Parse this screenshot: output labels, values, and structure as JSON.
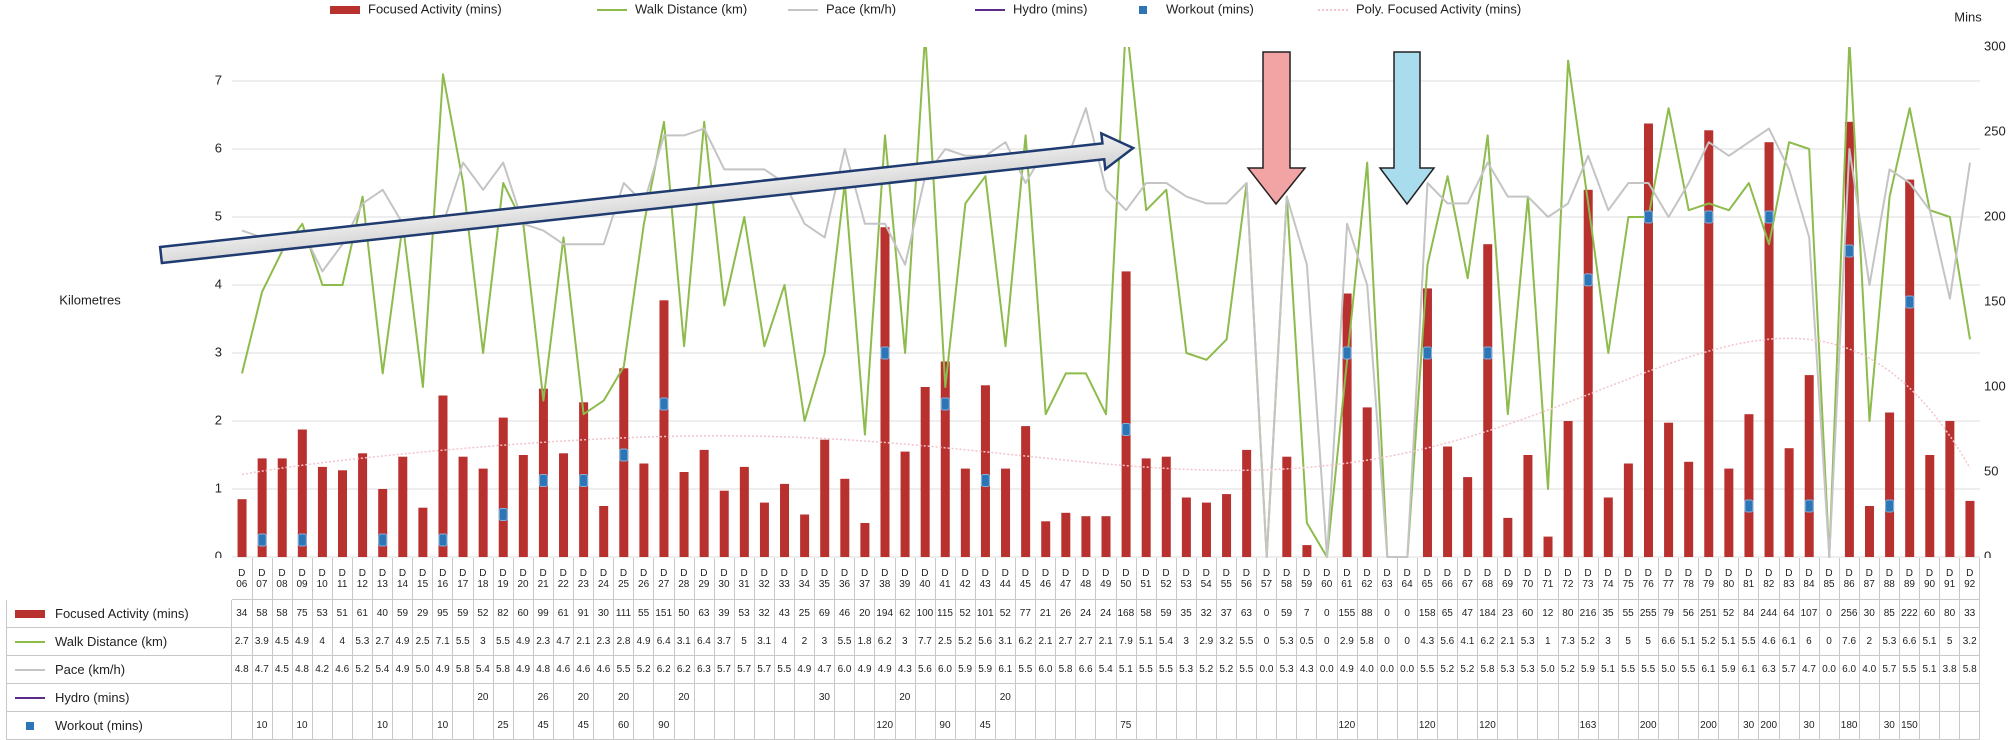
{
  "chart_data": {
    "type": "combo",
    "ylabel": "Kilometres",
    "y2label": "Mins",
    "ylim": [
      0,
      7.5
    ],
    "yticks": [
      0,
      1,
      2,
      3,
      4,
      5,
      6,
      7
    ],
    "y2lim": [
      0,
      300
    ],
    "y2ticks": [
      0,
      50,
      100,
      150,
      200,
      250,
      300
    ],
    "grid": true,
    "categories": [
      "D 06",
      "D 07",
      "D 08",
      "D 09",
      "D 10",
      "D 11",
      "D 12",
      "D 13",
      "D 14",
      "D 15",
      "D 16",
      "D 17",
      "D 18",
      "D 19",
      "D 20",
      "D 21",
      "D 22",
      "D 23",
      "D 24",
      "D 25",
      "D 26",
      "D 27",
      "D 28",
      "D 29",
      "D 30",
      "D 31",
      "D 32",
      "D 33",
      "D 34",
      "D 35",
      "D 36",
      "D 37",
      "D 38",
      "D 39",
      "D 40",
      "D 41",
      "D 42",
      "D 43",
      "D 44",
      "D 45",
      "D 46",
      "D 47",
      "D 48",
      "D 49",
      "D 50",
      "D 51",
      "D 52",
      "D 53",
      "D 54",
      "D 55",
      "D 56",
      "D 57",
      "D 58",
      "D 59",
      "D 60",
      "D 61",
      "D 62",
      "D 63",
      "D 64",
      "D 65",
      "D 66",
      "D 67",
      "D 68",
      "D 69",
      "D 70",
      "D 71",
      "D 72",
      "D 73",
      "D 74",
      "D 75",
      "D 76",
      "D 77",
      "D 78",
      "D 79",
      "D 80",
      "D 81",
      "D 82",
      "D 83",
      "D 84",
      "D 85",
      "D 86",
      "D 87",
      "D 88",
      "D 89",
      "D 90",
      "D 91",
      "D 92"
    ],
    "series": [
      {
        "name": "Focused Activity (mins)",
        "type": "bar",
        "axis": "y2",
        "color": "#b8312f",
        "values": [
          34,
          58,
          58,
          75,
          53,
          51,
          61,
          40,
          59,
          29,
          95,
          59,
          52,
          82,
          60,
          99,
          61,
          91,
          30,
          111,
          55,
          151,
          50,
          63,
          39,
          53,
          32,
          43,
          25,
          69,
          46,
          20,
          194,
          62,
          100,
          115,
          52,
          101,
          52,
          77,
          21,
          26,
          24,
          24,
          168,
          58,
          59,
          35,
          32,
          37,
          63,
          0,
          59,
          7,
          0,
          155,
          88,
          0,
          0,
          158,
          65,
          47,
          184,
          23,
          60,
          12,
          80,
          216,
          35,
          55,
          255,
          79,
          56,
          251,
          52,
          84,
          244,
          64,
          107,
          0,
          256,
          30,
          85,
          222,
          60,
          80,
          33
        ]
      },
      {
        "name": "Walk Distance (km)",
        "type": "line",
        "axis": "y",
        "color": "#8dbb4c",
        "values": [
          2.7,
          3.9,
          4.5,
          4.9,
          4,
          4,
          5.3,
          2.7,
          4.9,
          2.5,
          7.1,
          5.5,
          3,
          5.5,
          4.9,
          2.3,
          4.7,
          2.1,
          2.3,
          2.8,
          4.9,
          6.4,
          3.1,
          6.4,
          3.7,
          5,
          3.1,
          4,
          2,
          3,
          5.5,
          1.8,
          6.2,
          3,
          7.7,
          2.5,
          5.2,
          5.6,
          3.1,
          6.2,
          2.1,
          2.7,
          2.7,
          2.1,
          7.9,
          5.1,
          5.4,
          3,
          2.9,
          3.2,
          5.5,
          0,
          5.3,
          0.5,
          0,
          2.9,
          5.8,
          0,
          0,
          4.3,
          5.6,
          4.1,
          6.2,
          2.1,
          5.3,
          1,
          7.3,
          5.2,
          3,
          5,
          5,
          6.6,
          5.1,
          5.2,
          5.1,
          5.5,
          4.6,
          6.1,
          6,
          0,
          7.6,
          2,
          5.3,
          6.6,
          5.1,
          5,
          3.2
        ]
      },
      {
        "name": "Pace (km/h)",
        "type": "line",
        "axis": "y",
        "color": "#c4c4c4",
        "values": [
          4.8,
          4.7,
          4.5,
          4.8,
          4.2,
          4.6,
          5.2,
          5.4,
          4.9,
          5,
          4.9,
          5.8,
          5.4,
          5.8,
          4.9,
          4.8,
          4.6,
          4.6,
          4.6,
          5.5,
          5.2,
          6.2,
          6.2,
          6.3,
          5.7,
          5.7,
          5.7,
          5.5,
          4.9,
          4.7,
          6,
          4.9,
          4.9,
          4.3,
          5.6,
          6,
          5.9,
          5.9,
          6.1,
          5.5,
          6,
          5.8,
          6.6,
          5.4,
          5.1,
          5.5,
          5.5,
          5.3,
          5.2,
          5.2,
          5.5,
          0,
          5.3,
          4.3,
          0,
          4.9,
          4,
          0,
          0,
          5.5,
          5.2,
          5.2,
          5.8,
          5.3,
          5.3,
          5,
          5.2,
          5.9,
          5.1,
          5.5,
          5.5,
          5,
          5.5,
          6.1,
          5.9,
          6.1,
          6.3,
          5.7,
          4.7,
          0,
          6,
          4,
          5.7,
          5.5,
          5.1,
          3.8,
          5.8
        ],
        "value_labels": [
          "4.8",
          "4.7",
          "4.5",
          "4.8",
          "4.2",
          "4.6",
          "5.2",
          "5.4",
          "4.9",
          "5.0",
          "4.9",
          "5.8",
          "5.4",
          "5.8",
          "4.9",
          "4.8",
          "4.6",
          "4.6",
          "4.6",
          "5.5",
          "5.2",
          "6.2",
          "6.2",
          "6.3",
          "5.7",
          "5.7",
          "5.7",
          "5.5",
          "4.9",
          "4.7",
          "6.0",
          "4.9",
          "4.9",
          "4.3",
          "5.6",
          "6.0",
          "5.9",
          "5.9",
          "6.1",
          "5.5",
          "6.0",
          "5.8",
          "6.6",
          "5.4",
          "5.1",
          "5.5",
          "5.5",
          "5.3",
          "5.2",
          "5.2",
          "5.5",
          "0.0",
          "5.3",
          "4.3",
          "0.0",
          "4.9",
          "4.0",
          "0.0",
          "0.0",
          "5.5",
          "5.2",
          "5.2",
          "5.8",
          "5.3",
          "5.3",
          "5.0",
          "5.2",
          "5.9",
          "5.1",
          "5.5",
          "5.5",
          "5.0",
          "5.5",
          "6.1",
          "5.9",
          "6.1",
          "6.3",
          "5.7",
          "4.7",
          "0.0",
          "6.0",
          "4.0",
          "5.7",
          "5.5",
          "5.1",
          "3.8",
          "5.8"
        ]
      },
      {
        "name": "Hydro (mins)",
        "type": "line",
        "axis": "y2",
        "color": "#5a2d8c",
        "values": [
          null,
          null,
          null,
          null,
          null,
          null,
          null,
          null,
          null,
          null,
          null,
          null,
          20,
          null,
          null,
          26,
          null,
          20,
          null,
          20,
          null,
          null,
          20,
          null,
          null,
          null,
          null,
          null,
          null,
          30,
          null,
          null,
          null,
          20,
          null,
          null,
          null,
          null,
          20,
          null,
          null,
          null,
          null,
          null,
          null,
          null,
          null,
          null,
          null,
          null,
          null,
          null,
          null,
          null,
          null,
          null,
          null,
          null,
          null,
          null,
          null,
          null,
          null,
          null,
          null,
          null,
          null,
          null,
          null,
          null,
          null,
          null,
          null,
          null,
          null,
          null,
          null,
          null,
          null,
          null,
          null,
          null,
          null,
          null,
          null,
          null,
          null
        ]
      },
      {
        "name": "Workout (mins)",
        "type": "marker",
        "axis": "y2",
        "color": "#2e75b6",
        "values": [
          null,
          10,
          null,
          10,
          null,
          null,
          null,
          10,
          null,
          null,
          10,
          null,
          null,
          25,
          null,
          45,
          null,
          45,
          null,
          60,
          null,
          90,
          null,
          null,
          null,
          null,
          null,
          null,
          null,
          null,
          null,
          null,
          120,
          null,
          null,
          90,
          null,
          45,
          null,
          null,
          null,
          null,
          null,
          null,
          75,
          null,
          null,
          null,
          null,
          null,
          null,
          null,
          null,
          null,
          null,
          120,
          null,
          null,
          null,
          120,
          null,
          null,
          120,
          null,
          null,
          null,
          null,
          163,
          null,
          null,
          200,
          null,
          null,
          200,
          null,
          30,
          200,
          null,
          30,
          null,
          180,
          null,
          30,
          150,
          null,
          null,
          null
        ]
      }
    ],
    "trendline": {
      "name": "Poly. Focused Activity (mins)",
      "type": "poly",
      "order": 6,
      "series": 0,
      "axis": "y2",
      "color": "#f3c4cb"
    }
  }
}
